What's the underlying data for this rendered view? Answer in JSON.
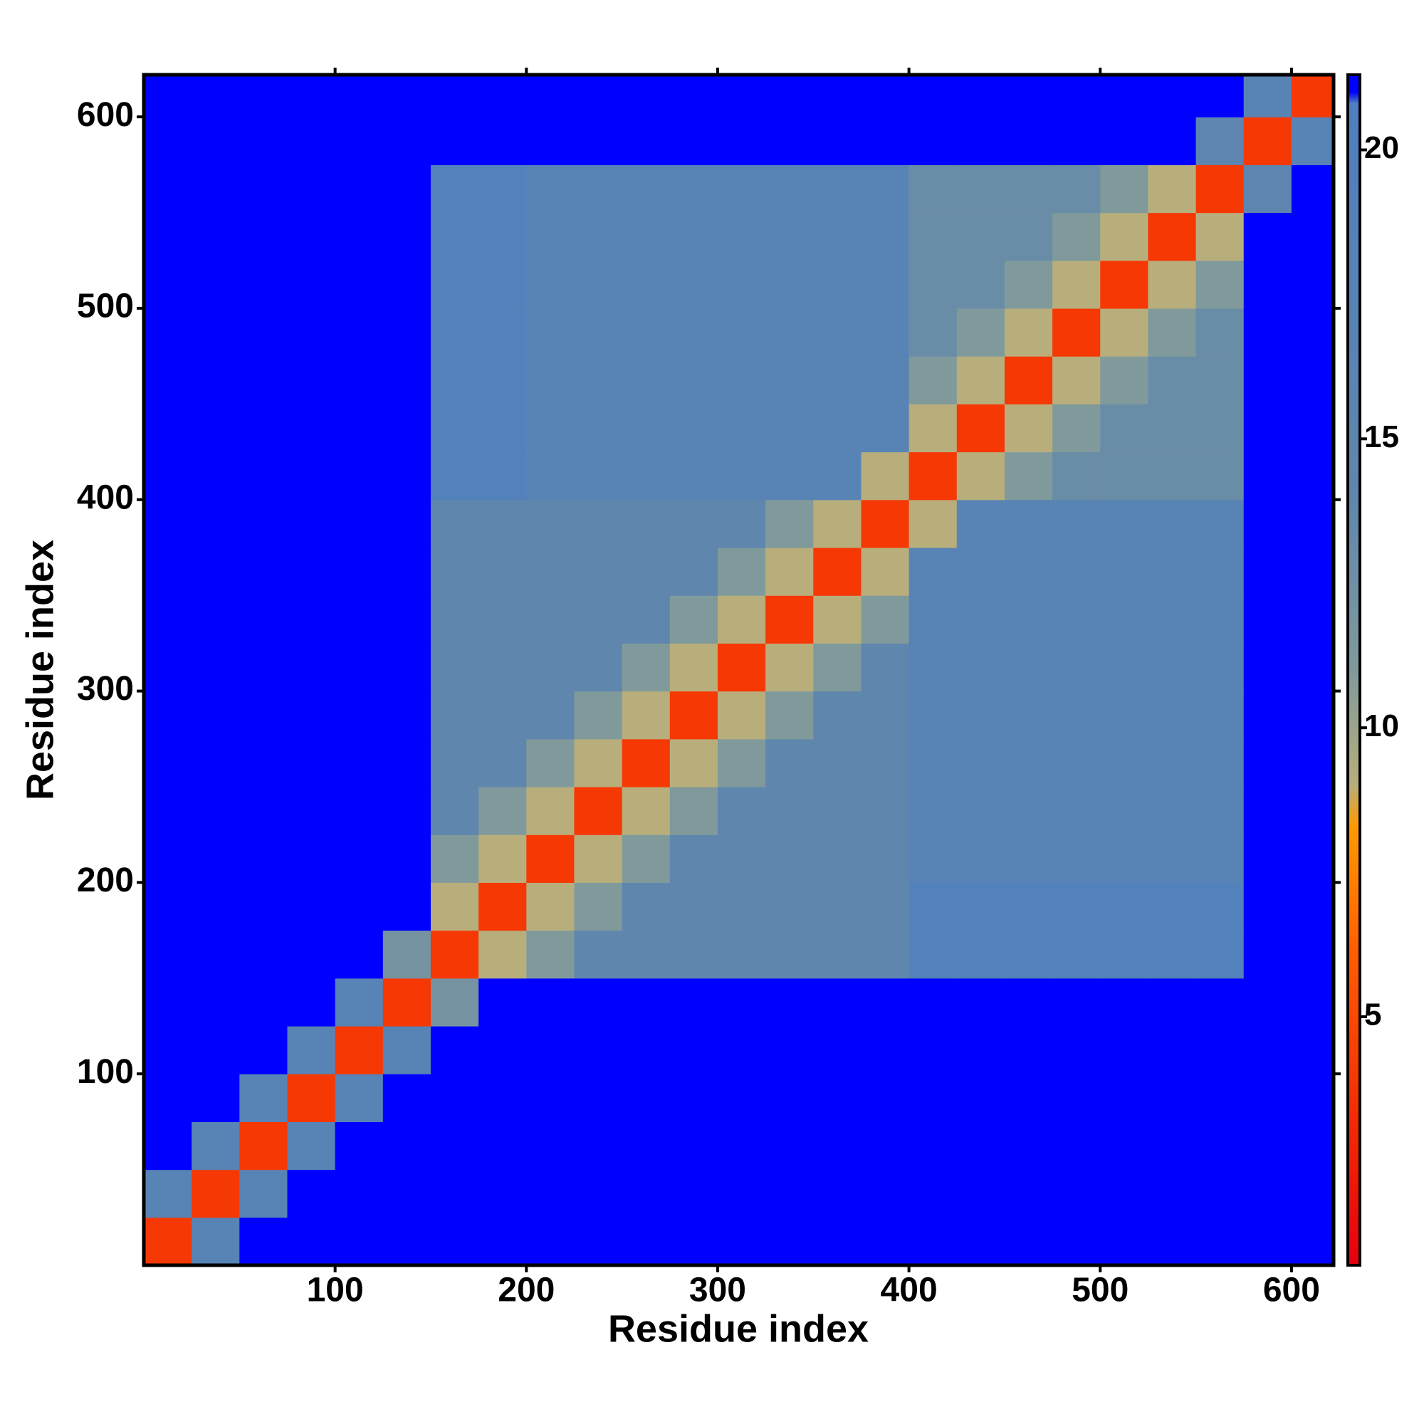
{
  "chart_data": {
    "type": "heatmap",
    "x_label": "Residue index",
    "y_label": "Residue index",
    "xlim": [
      0,
      622
    ],
    "ylim": [
      0,
      622
    ],
    "xticks": [
      100,
      200,
      300,
      400,
      500,
      600
    ],
    "yticks": [
      100,
      200,
      300,
      400,
      500,
      600
    ],
    "clim": [
      0.7,
      21.3
    ],
    "cticks": [
      5,
      10,
      15,
      20
    ],
    "colorscale": [
      [
        0.7,
        "#e6000c"
      ],
      [
        6,
        "#ff5a00"
      ],
      [
        8.3,
        "#ff9a00"
      ],
      [
        9,
        "#b8ae7c"
      ],
      [
        11,
        "#809a9c"
      ],
      [
        14,
        "#5f86ac"
      ],
      [
        20.8,
        "#4f7fc0"
      ],
      [
        21,
        "#0000ff"
      ],
      [
        21.3,
        "#0000ff"
      ]
    ],
    "x": [
      12.5,
      37.5,
      62.5,
      87.5,
      112.5,
      137.5,
      162.5,
      187.5,
      212.5,
      237.5,
      262.5,
      287.5,
      312.5,
      337.5,
      362.5,
      387.5,
      412.5,
      437.5,
      462.5,
      487.5,
      512.5,
      537.5,
      562.5,
      587.5,
      612.5
    ],
    "y": [
      12.5,
      37.5,
      62.5,
      87.5,
      112.5,
      137.5,
      162.5,
      187.5,
      212.5,
      237.5,
      262.5,
      287.5,
      312.5,
      337.5,
      362.5,
      387.5,
      412.5,
      437.5,
      462.5,
      487.5,
      512.5,
      537.5,
      562.5,
      587.5,
      612.5
    ],
    "values": [
      [
        4,
        17,
        21,
        21,
        21,
        21,
        21,
        21,
        21,
        21,
        21,
        21,
        21,
        21,
        21,
        21,
        21,
        21,
        21,
        21,
        21,
        21,
        21,
        21,
        21
      ],
      [
        17,
        4,
        17,
        21,
        21,
        21,
        21,
        21,
        21,
        21,
        21,
        21,
        21,
        21,
        21,
        21,
        21,
        21,
        21,
        21,
        21,
        21,
        21,
        21,
        21
      ],
      [
        21,
        17,
        4,
        17,
        21,
        21,
        21,
        21,
        21,
        21,
        21,
        21,
        21,
        21,
        21,
        21,
        21,
        21,
        21,
        21,
        21,
        21,
        21,
        21,
        21
      ],
      [
        21,
        21,
        17,
        4,
        17,
        21,
        21,
        21,
        21,
        21,
        21,
        21,
        21,
        21,
        21,
        21,
        21,
        21,
        21,
        21,
        21,
        21,
        21,
        21,
        21
      ],
      [
        21,
        21,
        21,
        17,
        4,
        17,
        21,
        21,
        21,
        21,
        21,
        21,
        21,
        21,
        21,
        21,
        21,
        21,
        21,
        21,
        21,
        21,
        21,
        21,
        21
      ],
      [
        21,
        21,
        21,
        21,
        17,
        4,
        12,
        21,
        21,
        21,
        21,
        21,
        21,
        21,
        21,
        21,
        21,
        21,
        21,
        21,
        21,
        21,
        21,
        21,
        21
      ],
      [
        21,
        21,
        21,
        21,
        21,
        12,
        4,
        9,
        11,
        14,
        14,
        14,
        14,
        14,
        14,
        14,
        19,
        19,
        19,
        19,
        19,
        19,
        19,
        21,
        21
      ],
      [
        21,
        21,
        21,
        21,
        21,
        21,
        9,
        4,
        9,
        11,
        14,
        14,
        14,
        14,
        14,
        14,
        19,
        19,
        19,
        19,
        19,
        19,
        19,
        21,
        21
      ],
      [
        21,
        21,
        21,
        21,
        21,
        21,
        11,
        9,
        4,
        9,
        11,
        14,
        14,
        14,
        14,
        14,
        17,
        17,
        17,
        17,
        17,
        17,
        17,
        21,
        21
      ],
      [
        21,
        21,
        21,
        21,
        21,
        21,
        14,
        11,
        9,
        4,
        9,
        11,
        14,
        14,
        14,
        14,
        17,
        17,
        17,
        17,
        17,
        17,
        17,
        21,
        21
      ],
      [
        21,
        21,
        21,
        21,
        21,
        21,
        14,
        14,
        11,
        9,
        4,
        9,
        11,
        14,
        14,
        14,
        17,
        17,
        17,
        17,
        17,
        17,
        17,
        21,
        21
      ],
      [
        21,
        21,
        21,
        21,
        21,
        21,
        14,
        14,
        14,
        11,
        9,
        4,
        9,
        11,
        14,
        14,
        17,
        17,
        17,
        17,
        17,
        17,
        17,
        21,
        21
      ],
      [
        21,
        21,
        21,
        21,
        21,
        21,
        14,
        14,
        14,
        14,
        11,
        9,
        4,
        9,
        11,
        14,
        17,
        17,
        17,
        17,
        17,
        17,
        17,
        21,
        21
      ],
      [
        21,
        21,
        21,
        21,
        21,
        21,
        14,
        14,
        14,
        14,
        14,
        11,
        9,
        4,
        9,
        11,
        17,
        17,
        17,
        17,
        17,
        17,
        17,
        21,
        21
      ],
      [
        21,
        21,
        21,
        21,
        21,
        21,
        14,
        14,
        14,
        14,
        14,
        14,
        11,
        9,
        4,
        9,
        17,
        17,
        17,
        17,
        17,
        17,
        17,
        21,
        21
      ],
      [
        21,
        21,
        21,
        21,
        21,
        21,
        14,
        14,
        14,
        14,
        14,
        14,
        14,
        11,
        9,
        4,
        9,
        17,
        17,
        17,
        17,
        17,
        17,
        21,
        21
      ],
      [
        21,
        21,
        21,
        21,
        21,
        21,
        19,
        19,
        17,
        17,
        17,
        17,
        17,
        17,
        17,
        9,
        4,
        9,
        11,
        13,
        13,
        13,
        13,
        21,
        21
      ],
      [
        21,
        21,
        21,
        21,
        21,
        21,
        19,
        19,
        17,
        17,
        17,
        17,
        17,
        17,
        17,
        17,
        9,
        4,
        9,
        11,
        13,
        13,
        13,
        21,
        21
      ],
      [
        21,
        21,
        21,
        21,
        21,
        21,
        19,
        19,
        17,
        17,
        17,
        17,
        17,
        17,
        17,
        17,
        11,
        9,
        4,
        9,
        11,
        13,
        13,
        21,
        21
      ],
      [
        21,
        21,
        21,
        21,
        21,
        21,
        19,
        19,
        17,
        17,
        17,
        17,
        17,
        17,
        17,
        17,
        13,
        11,
        9,
        4,
        9,
        11,
        13,
        21,
        21
      ],
      [
        21,
        21,
        21,
        21,
        21,
        21,
        19,
        19,
        17,
        17,
        17,
        17,
        17,
        17,
        17,
        17,
        13,
        13,
        11,
        9,
        4,
        9,
        11,
        21,
        21
      ],
      [
        21,
        21,
        21,
        21,
        21,
        21,
        19,
        19,
        17,
        17,
        17,
        17,
        17,
        17,
        17,
        17,
        13,
        13,
        13,
        11,
        9,
        4,
        9,
        21,
        21
      ],
      [
        21,
        21,
        21,
        21,
        21,
        21,
        19,
        19,
        17,
        17,
        17,
        17,
        17,
        17,
        17,
        17,
        13,
        13,
        13,
        13,
        11,
        9,
        4,
        15,
        21
      ],
      [
        21,
        21,
        21,
        21,
        21,
        21,
        21,
        21,
        21,
        21,
        21,
        21,
        21,
        21,
        21,
        21,
        21,
        21,
        21,
        21,
        21,
        21,
        15,
        4,
        17
      ],
      [
        21,
        21,
        21,
        21,
        21,
        21,
        21,
        21,
        21,
        21,
        21,
        21,
        21,
        21,
        21,
        21,
        21,
        21,
        21,
        21,
        21,
        21,
        21,
        17,
        4
      ]
    ]
  }
}
